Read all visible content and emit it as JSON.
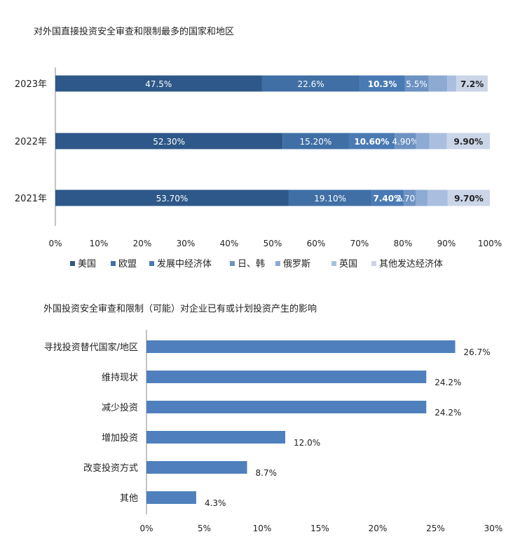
{
  "chart_data": [
    {
      "type": "bar",
      "orientation": "horizontal",
      "stacked": true,
      "title": "对外国直接投资安全审查和限制最多的国家和地区",
      "categories": [
        "2023年",
        "2022年",
        "2021年"
      ],
      "series": [
        {
          "name": "美国",
          "values": [
            47.5,
            52.3,
            53.7
          ],
          "labels": [
            "47.5%",
            "52.30%",
            "53.70%"
          ],
          "color": "#2e5889"
        },
        {
          "name": "欧盟",
          "values": [
            22.6,
            15.2,
            19.1
          ],
          "labels": [
            "22.6%",
            "15.20%",
            "19.10%"
          ],
          "color": "#3f6fa5"
        },
        {
          "name": "发展中经济体",
          "values": [
            10.3,
            10.6,
            7.4
          ],
          "labels": [
            "10.3%",
            "10.60%",
            "7.40%"
          ],
          "color": "#4a7ab4"
        },
        {
          "name": "日、韩",
          "values": [
            5.5,
            4.9,
            2.7
          ],
          "labels": [
            "5.5%",
            "4.90%",
            "2.70%"
          ],
          "color": "#6d92c3"
        },
        {
          "name": "俄罗斯",
          "values": [
            4.3,
            3.1,
            2.8
          ],
          "labels": [
            "",
            "",
            ""
          ],
          "color": "#8daad3"
        },
        {
          "name": "英国",
          "values": [
            2.1,
            4.0,
            4.6
          ],
          "labels": [
            "",
            "",
            ""
          ],
          "color": "#aabfdf"
        },
        {
          "name": "其他发达经济体",
          "values": [
            7.2,
            9.9,
            9.7
          ],
          "labels": [
            "7.2%",
            "9.90%",
            "9.70%"
          ],
          "color": "#cbd5e8"
        }
      ],
      "xlim": [
        0,
        100
      ],
      "xticks": [
        "0%",
        "10%",
        "20%",
        "30%",
        "40%",
        "50%",
        "60%",
        "70%",
        "80%",
        "90%",
        "100%"
      ],
      "legend": "bottom",
      "grid": false
    },
    {
      "type": "bar",
      "orientation": "horizontal",
      "title": "外国投资安全审查和限制（可能）对企业已有或计划投资产生的影响",
      "categories": [
        "寻找投资替代国家/地区",
        "维持现状",
        "减少投资",
        "增加投资",
        "改变投资方式",
        "其他"
      ],
      "values": [
        26.7,
        24.2,
        24.2,
        12.0,
        8.7,
        4.3
      ],
      "labels": [
        "26.7%",
        "24.2%",
        "24.2%",
        "12.0%",
        "8.7%",
        "4.3%"
      ],
      "color": "#4f80bd",
      "xlim": [
        0,
        30
      ],
      "xticks": [
        "0%",
        "5%",
        "10%",
        "15%",
        "20%",
        "25%",
        "30%"
      ],
      "grid": false
    }
  ]
}
